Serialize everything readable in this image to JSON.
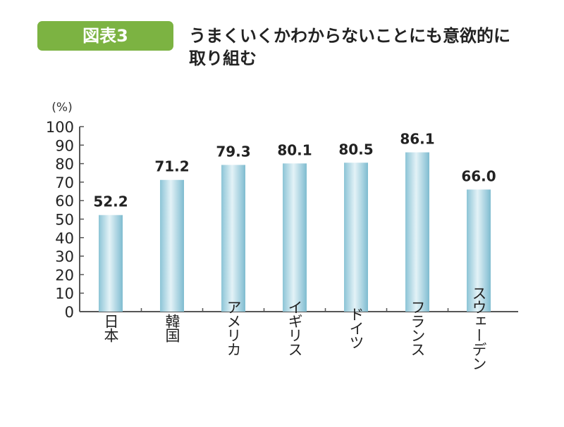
{
  "badge": "図表3",
  "title": "うまくいくかわからないことにも意欲的に取り組む",
  "chart_data": {
    "type": "bar",
    "title": "うまくいくかわからないことにも意欲的に取り組む",
    "ylabel": "(%)",
    "ylim": [
      0,
      100
    ],
    "yticks": [
      0,
      10,
      20,
      30,
      40,
      50,
      60,
      70,
      80,
      90,
      100
    ],
    "categories": [
      "日本",
      "韓国",
      "アメリカ",
      "イギリス",
      "ドイツ",
      "フランス",
      "スウェーデン"
    ],
    "values": [
      52.2,
      71.2,
      79.3,
      80.1,
      80.5,
      86.1,
      66.0
    ],
    "data_labels": [
      "52.2",
      "71.2",
      "79.3",
      "80.1",
      "80.5",
      "86.1",
      "66.0"
    ],
    "grid": false,
    "bar_color": "#a9d6e5"
  }
}
